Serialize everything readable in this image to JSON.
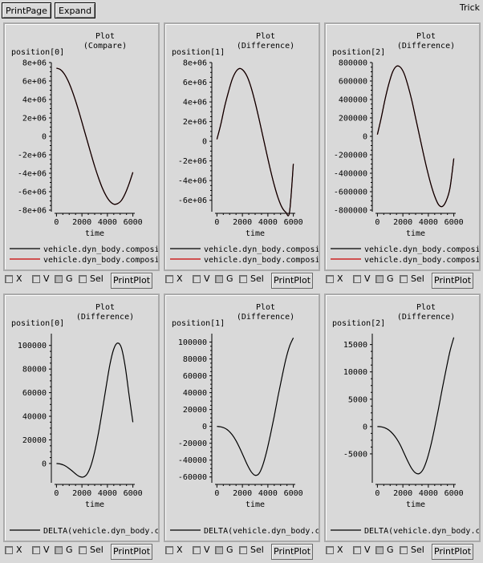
{
  "toolbar": {
    "print_page": "PrintPage",
    "expand": "Expand",
    "app_name": "Trick"
  },
  "controls": {
    "x": "X",
    "v": "V",
    "g": "G",
    "sel": "Sel",
    "print_plot": "PrintPlot",
    "g_checked": true
  },
  "colors": {
    "series_black": "#000000",
    "series_red": "#cc0000"
  },
  "chart_data": [
    {
      "type": "line",
      "title": "Plot",
      "subtitle": "(Compare)",
      "ylabel": "position[0]",
      "xlabel": "time",
      "xlim": [
        -150,
        6150
      ],
      "ylim": [
        -8000000,
        8000000
      ],
      "xticks": [
        0,
        2000,
        4000,
        6000
      ],
      "yticks": [
        -8000000,
        -6000000,
        -4000000,
        -2000000,
        0,
        2000000,
        4000000,
        6000000,
        8000000
      ],
      "ytick_labels": [
        "-8e+06",
        "-6e+06",
        "-4e+06",
        "-2e+06",
        "0",
        "2e+06",
        "4e+06",
        "6e+06",
        "8e+06"
      ],
      "series": [
        {
          "name": "vehicle.dyn_body.composi",
          "color": "#000000",
          "x": [
            0,
            300,
            600,
            900,
            1200,
            1500,
            1800,
            2100,
            2400,
            2700,
            3000,
            3300,
            3600,
            3900,
            4200,
            4500,
            4800,
            5100,
            5400,
            5700,
            6000
          ],
          "values": [
            7400000,
            7250000,
            6800000,
            6050000,
            5050000,
            3850000,
            2500000,
            1050000,
            -400000,
            -1850000,
            -3250000,
            -4500000,
            -5600000,
            -6450000,
            -7050000,
            -7350000,
            -7300000,
            -6950000,
            -6200000,
            -5150000,
            -3900000
          ]
        },
        {
          "name": "vehicle.dyn_body.composi",
          "color": "#cc0000",
          "x": [
            0,
            300,
            600,
            900,
            1200,
            1500,
            1800,
            2100,
            2400,
            2700,
            3000,
            3300,
            3600,
            3900,
            4200,
            4500,
            4800,
            5100,
            5400,
            5700,
            6000
          ],
          "values": [
            7400000,
            7250000,
            6800000,
            6050000,
            5050000,
            3850000,
            2500000,
            1050000,
            -400000,
            -1850000,
            -3250000,
            -4500000,
            -5600000,
            -6450000,
            -7050000,
            -7350000,
            -7300000,
            -6950000,
            -6200000,
            -5150000,
            -3900000
          ]
        }
      ]
    },
    {
      "type": "line",
      "title": "Plot",
      "subtitle": "(Difference)",
      "ylabel": "position[1]",
      "xlabel": "time",
      "xlim": [
        -150,
        6150
      ],
      "ylim": [
        -7000000,
        8000000
      ],
      "xticks": [
        0,
        2000,
        4000,
        6000
      ],
      "yticks": [
        -6000000,
        -4000000,
        -2000000,
        0,
        2000000,
        4000000,
        6000000,
        8000000
      ],
      "ytick_labels": [
        "-6e+06",
        "-4e+06",
        "-2e+06",
        "0",
        "2e+06",
        "4e+06",
        "6e+06",
        "8e+06"
      ],
      "series": [
        {
          "name": "vehicle.dyn_body.composi",
          "color": "#000000",
          "x": [
            0,
            300,
            600,
            900,
            1200,
            1500,
            1800,
            2100,
            2400,
            2700,
            3000,
            3300,
            3600,
            3900,
            4200,
            4500,
            4800,
            5100,
            5400,
            5700,
            6000
          ],
          "values": [
            200000,
            1700000,
            3500000,
            5000000,
            6300000,
            7100000,
            7400000,
            7150000,
            6500000,
            5400000,
            3950000,
            2300000,
            550000,
            -1200000,
            -2900000,
            -4450000,
            -5750000,
            -6700000,
            -7200000,
            -7200000,
            -2300000
          ]
        },
        {
          "name": "vehicle.dyn_body.composi",
          "color": "#cc0000",
          "x": [
            0,
            300,
            600,
            900,
            1200,
            1500,
            1800,
            2100,
            2400,
            2700,
            3000,
            3300,
            3600,
            3900,
            4200,
            4500,
            4800,
            5100,
            5400,
            5700,
            6000
          ],
          "values": [
            200000,
            1700000,
            3500000,
            5000000,
            6300000,
            7100000,
            7400000,
            7150000,
            6500000,
            5400000,
            3950000,
            2300000,
            550000,
            -1200000,
            -2900000,
            -4450000,
            -5750000,
            -6700000,
            -7200000,
            -7200000,
            -2300000
          ]
        }
      ]
    },
    {
      "type": "line",
      "title": "Plot",
      "subtitle": "(Difference)",
      "ylabel": "position[2]",
      "xlabel": "time",
      "xlim": [
        -150,
        6150
      ],
      "ylim": [
        -800000,
        800000
      ],
      "xticks": [
        0,
        2000,
        4000,
        6000
      ],
      "yticks": [
        -800000,
        -600000,
        -400000,
        -200000,
        0,
        200000,
        400000,
        600000,
        800000
      ],
      "ytick_labels": [
        "-800000",
        "-600000",
        "-400000",
        "-200000",
        "0",
        "200000",
        "400000",
        "600000",
        "800000"
      ],
      "series": [
        {
          "name": "vehicle.dyn_body.composi",
          "color": "#000000",
          "x": [
            0,
            300,
            600,
            900,
            1200,
            1500,
            1800,
            2100,
            2400,
            2700,
            3000,
            3300,
            3600,
            3900,
            4200,
            4500,
            4800,
            5100,
            5400,
            5700,
            6000
          ],
          "values": [
            20000,
            200000,
            400000,
            570000,
            700000,
            760000,
            750000,
            680000,
            550000,
            390000,
            200000,
            10000,
            -180000,
            -360000,
            -520000,
            -650000,
            -740000,
            -760000,
            -700000,
            -560000,
            -240000
          ]
        },
        {
          "name": "vehicle.dyn_body.composi",
          "color": "#cc0000",
          "x": [
            0,
            300,
            600,
            900,
            1200,
            1500,
            1800,
            2100,
            2400,
            2700,
            3000,
            3300,
            3600,
            3900,
            4200,
            4500,
            4800,
            5100,
            5400,
            5700,
            6000
          ],
          "values": [
            20000,
            200000,
            400000,
            570000,
            700000,
            760000,
            750000,
            680000,
            550000,
            390000,
            200000,
            10000,
            -180000,
            -360000,
            -520000,
            -650000,
            -740000,
            -760000,
            -700000,
            -560000,
            -240000
          ]
        }
      ]
    },
    {
      "type": "line",
      "title": "Plot",
      "subtitle": "(Difference)",
      "ylabel": "position[0]",
      "xlabel": "time",
      "xlim": [
        -150,
        6150
      ],
      "ylim": [
        -15000,
        110000
      ],
      "xticks": [
        0,
        2000,
        4000,
        6000
      ],
      "yticks": [
        0,
        20000,
        40000,
        60000,
        80000,
        100000
      ],
      "ytick_labels": [
        "0",
        "20000",
        "40000",
        "60000",
        "80000",
        "100000"
      ],
      "series": [
        {
          "name": "DELTA(vehicle.dyn_body.c",
          "color": "#000000",
          "x": [
            0,
            300,
            600,
            900,
            1200,
            1500,
            1800,
            2100,
            2400,
            2700,
            3000,
            3300,
            3600,
            3900,
            4200,
            4500,
            4800,
            5100,
            5400,
            5700,
            6000
          ],
          "values": [
            0,
            -400,
            -1500,
            -3500,
            -6000,
            -8800,
            -11000,
            -11500,
            -9000,
            -2000,
            10000,
            26000,
            45000,
            65000,
            84000,
            97000,
            102000,
            98000,
            82000,
            58000,
            35000
          ]
        }
      ]
    },
    {
      "type": "line",
      "title": "Plot",
      "subtitle": "(Difference)",
      "ylabel": "position[1]",
      "xlabel": "time",
      "xlim": [
        -150,
        6150
      ],
      "ylim": [
        -65000,
        110000
      ],
      "xticks": [
        0,
        2000,
        4000,
        6000
      ],
      "yticks": [
        -60000,
        -40000,
        -20000,
        0,
        20000,
        40000,
        60000,
        80000,
        100000
      ],
      "ytick_labels": [
        "-60000",
        "-40000",
        "-20000",
        "0",
        "20000",
        "40000",
        "60000",
        "80000",
        "100000"
      ],
      "series": [
        {
          "name": "DELTA(vehicle.dyn_body.c",
          "color": "#000000",
          "x": [
            0,
            300,
            600,
            900,
            1200,
            1500,
            1800,
            2100,
            2400,
            2700,
            3000,
            3300,
            3600,
            3900,
            4200,
            4500,
            4800,
            5100,
            5400,
            5700,
            6000
          ],
          "values": [
            0,
            -500,
            -2000,
            -5000,
            -10000,
            -17000,
            -26000,
            -36000,
            -46000,
            -54000,
            -58000,
            -56000,
            -46000,
            -30000,
            -10000,
            12000,
            36000,
            58000,
            79000,
            95000,
            105000
          ]
        }
      ]
    },
    {
      "type": "line",
      "title": "Plot",
      "subtitle": "(Difference)",
      "ylabel": "position[2]",
      "xlabel": "time",
      "xlim": [
        -150,
        6150
      ],
      "ylim": [
        -10000,
        17000
      ],
      "xticks": [
        0,
        2000,
        4000,
        6000
      ],
      "yticks": [
        -5000,
        0,
        5000,
        10000,
        15000
      ],
      "ytick_labels": [
        "-5000",
        "0",
        "5000",
        "10000",
        "15000"
      ],
      "series": [
        {
          "name": "DELTA(vehicle.dyn_body.c",
          "color": "#000000",
          "x": [
            0,
            300,
            600,
            900,
            1200,
            1500,
            1800,
            2100,
            2400,
            2700,
            3000,
            3300,
            3600,
            3900,
            4200,
            4500,
            4800,
            5100,
            5400,
            5700,
            6000
          ],
          "values": [
            0,
            -50,
            -250,
            -650,
            -1300,
            -2200,
            -3400,
            -4900,
            -6400,
            -7700,
            -8500,
            -8600,
            -7800,
            -6000,
            -3400,
            -200,
            3300,
            7000,
            10500,
            13800,
            16300
          ]
        }
      ]
    }
  ]
}
